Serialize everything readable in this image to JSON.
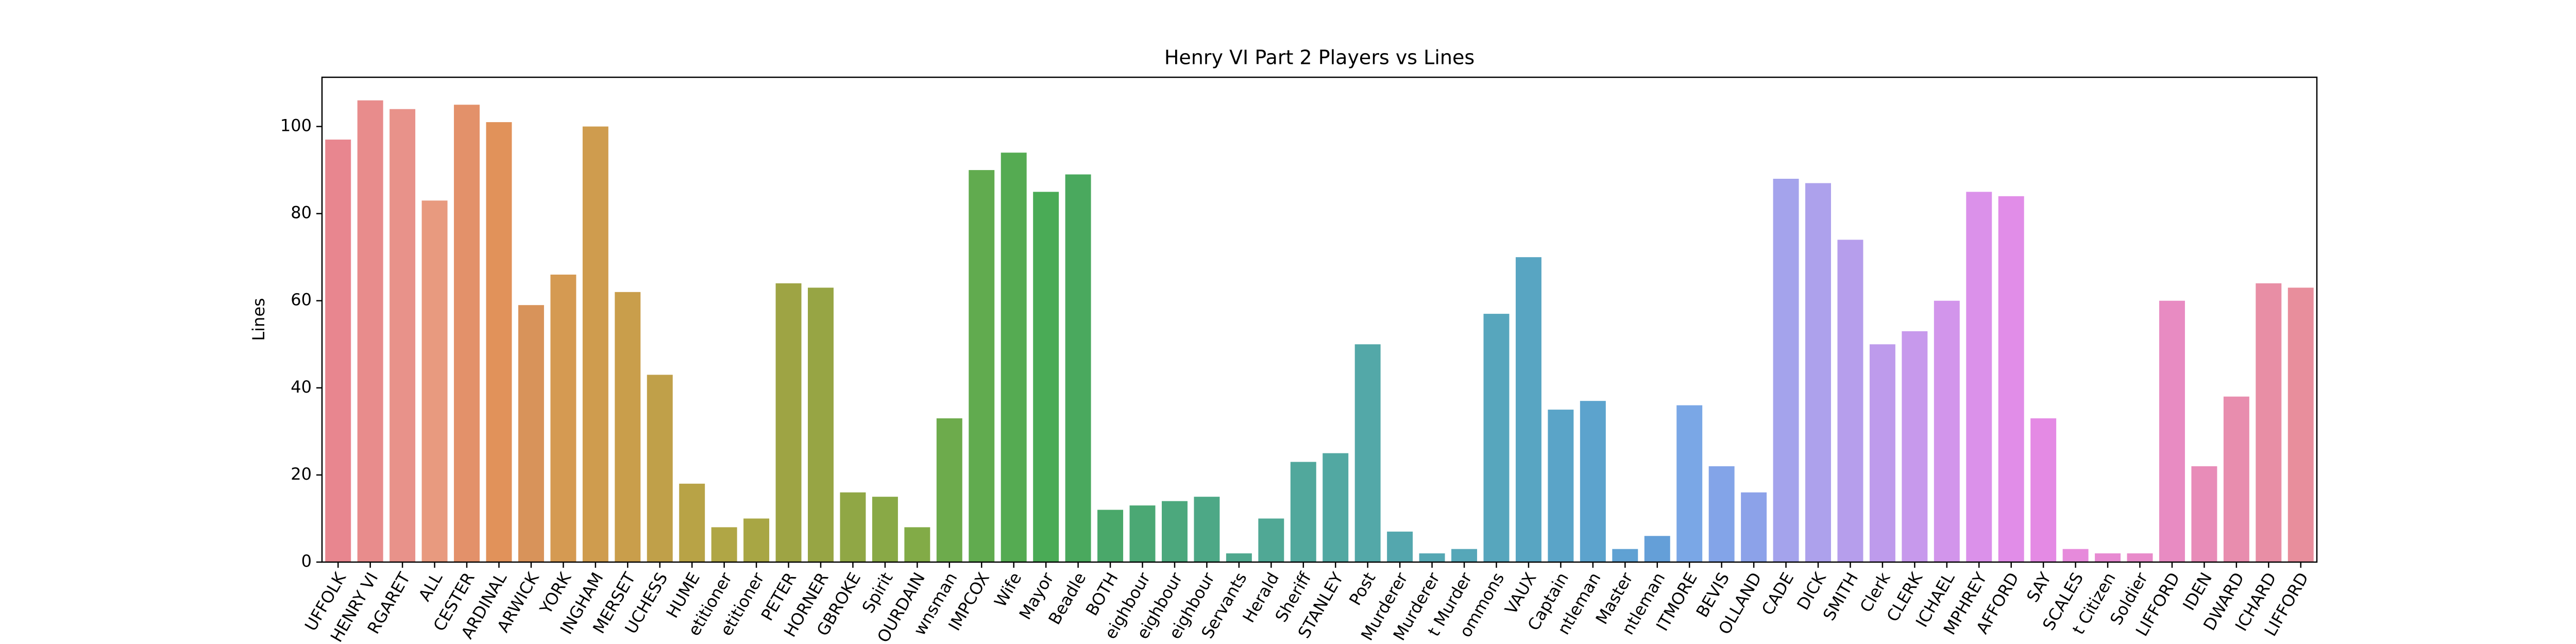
{
  "chart_data": {
    "type": "bar",
    "title": "Henry VI Part 2 Players vs Lines",
    "y_label": "Lines",
    "categories": [
      "UFFOLK",
      "HENRY VI",
      "RGARET",
      "ALL",
      "CESTER",
      "ARDINAL",
      "ARWICK",
      "YORK",
      "INGHAM",
      "MERSET",
      "UCHESS",
      "HUME",
      "etitioner",
      "etitioner",
      "PETER",
      "HORNER",
      "GBROKE",
      "Spirit",
      "OURDAIN",
      "wnsman",
      "IMPCOX",
      "Wife",
      "Mayor",
      "Beadle",
      "BOTH",
      "eighbour",
      "eighbour",
      "eighbour",
      "Servants",
      "Herald",
      "Sheriff",
      "STANLEY",
      "Post",
      "Murderer",
      "Murderer",
      "t Murder",
      "ommons",
      "VAUX",
      "Captain",
      "ntleman",
      "Master",
      "ntleman",
      "ITMORE",
      "BEVIS",
      "OLLAND",
      "CADE",
      "DICK",
      "SMITH",
      "Clerk",
      "CLERK",
      "ICHAEL",
      "MPHREY",
      "AFFORD",
      "SAY",
      "SCALES",
      "t Citizen",
      "Soldier",
      "LIFFORD",
      "IDEN",
      "DWARD",
      "ICHARD",
      "LIFFORD"
    ],
    "values": [
      97,
      106,
      104,
      83,
      105,
      101,
      59,
      66,
      100,
      62,
      43,
      18,
      8,
      10,
      64,
      63,
      16,
      15,
      8,
      33,
      90,
      94,
      85,
      89,
      12,
      13,
      14,
      15,
      2,
      10,
      23,
      25,
      50,
      7,
      2,
      3,
      57,
      70,
      35,
      37,
      3,
      6,
      36,
      22,
      16,
      88,
      87,
      74,
      50,
      53,
      60,
      85,
      84,
      33,
      3,
      2,
      2,
      60,
      22,
      38,
      64,
      63
    ],
    "colors": [
      "#e8868f",
      "#e88c8c",
      "#e8928a",
      "#e89a7f",
      "#e3916a",
      "#e1925a",
      "#d8935a",
      "#d59a52",
      "#cf9c4e",
      "#c99e4b",
      "#c0a049",
      "#b8a346",
      "#b0a645",
      "#a8a644",
      "#9ea444",
      "#97a544",
      "#90a745",
      "#89a946",
      "#82ab47",
      "#6dab4c",
      "#61ab4f",
      "#55ab52",
      "#4aab56",
      "#4aa95e",
      "#4aa86a",
      "#4ba874",
      "#4ca87d",
      "#4da886",
      "#4fa88e",
      "#50a895",
      "#51a89c",
      "#52a8a2",
      "#53a8a8",
      "#54a7ae",
      "#55a7b3",
      "#56a7b8",
      "#57a6bd",
      "#58a5c2",
      "#5aa4c8",
      "#5ca3cd",
      "#5fa1d3",
      "#649fd8",
      "#7aa7e6",
      "#83a4e8",
      "#8ca2e9",
      "#a4a3ec",
      "#ada1ec",
      "#b69eec",
      "#be9bec",
      "#c799ec",
      "#d295eb",
      "#db91ea",
      "#e18de8",
      "#e48ae4",
      "#e68adb",
      "#e78ad2",
      "#e88bca",
      "#e88bc2",
      "#e88cb8",
      "#e88dae",
      "#e88ea5",
      "#e88e9c"
    ],
    "ylim": [
      0,
      111.3
    ],
    "yticks": [
      0,
      20,
      40,
      60,
      80,
      100
    ]
  }
}
